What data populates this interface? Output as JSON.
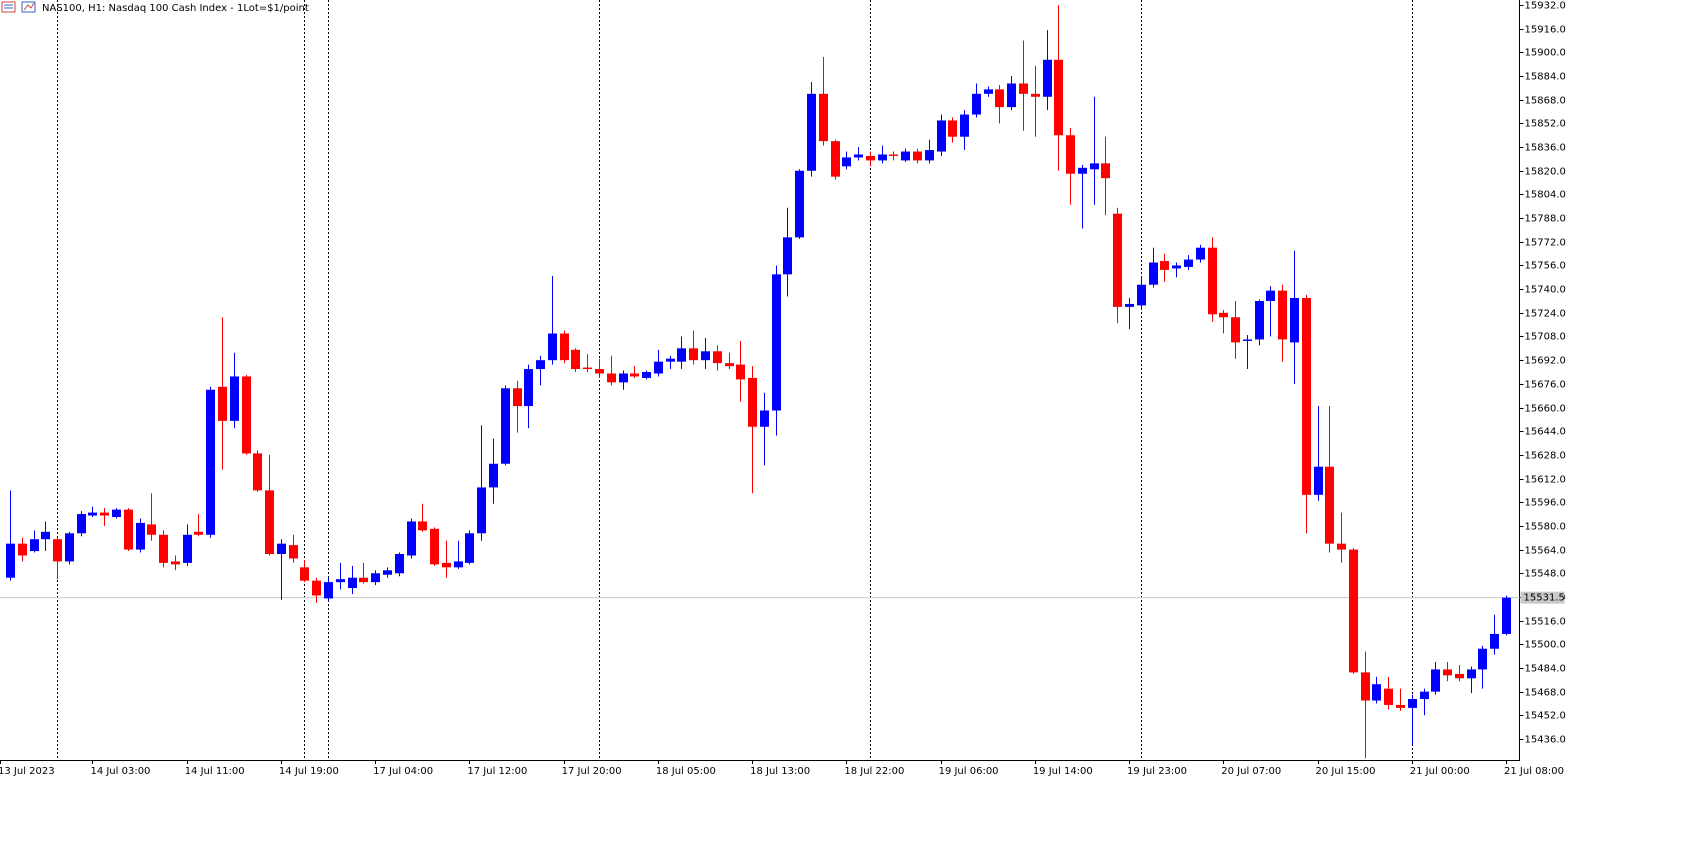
{
  "chart_data": {
    "type": "candlestick",
    "title": "NAS100, H1:  Nasdaq 100 Cash Index - 1Lot=$1/point",
    "up_color": "#0000ff",
    "down_color": "#ff0000",
    "ylim": [
      15421.8,
      15935.4
    ],
    "yticks": [
      {
        "value": 15932,
        "label": "15932.0"
      },
      {
        "value": 15916,
        "label": "15916.0"
      },
      {
        "value": 15900,
        "label": "15900.0"
      },
      {
        "value": 15884,
        "label": "15884.0"
      },
      {
        "value": 15868,
        "label": "15868.0"
      },
      {
        "value": 15852,
        "label": "15852.0"
      },
      {
        "value": 15836,
        "label": "15836.0"
      },
      {
        "value": 15820,
        "label": "15820.0"
      },
      {
        "value": 15804,
        "label": "15804.0"
      },
      {
        "value": 15788,
        "label": "15788.0"
      },
      {
        "value": 15772,
        "label": "15772.0"
      },
      {
        "value": 15756,
        "label": "15756.0"
      },
      {
        "value": 15740,
        "label": "15740.0"
      },
      {
        "value": 15724,
        "label": "15724.0"
      },
      {
        "value": 15708,
        "label": "15708.0"
      },
      {
        "value": 15692,
        "label": "15692.0"
      },
      {
        "value": 15676,
        "label": "15676.0"
      },
      {
        "value": 15660,
        "label": "15660.0"
      },
      {
        "value": 15644,
        "label": "15644.0"
      },
      {
        "value": 15628,
        "label": "15628.0"
      },
      {
        "value": 15612,
        "label": "15612.0"
      },
      {
        "value": 15596,
        "label": "15596.0"
      },
      {
        "value": 15580,
        "label": "15580.0"
      },
      {
        "value": 15564,
        "label": "15564.0"
      },
      {
        "value": 15548,
        "label": "15548.0"
      },
      {
        "value": 15532,
        "label": "15532.0"
      },
      {
        "value": 15516,
        "label": "15516.0"
      },
      {
        "value": 15500,
        "label": "15500.0"
      },
      {
        "value": 15484,
        "label": "15484.0"
      },
      {
        "value": 15468,
        "label": "15468.0"
      },
      {
        "value": 15452,
        "label": "15452.0"
      },
      {
        "value": 15436,
        "label": "15436.0"
      }
    ],
    "xticks": [
      {
        "value": -1,
        "label": "13 Jul 2023"
      },
      {
        "value": 7,
        "label": "14 Jul 03:00"
      },
      {
        "value": 15,
        "label": "14 Jul 11:00"
      },
      {
        "value": 23,
        "label": "14 Jul 19:00"
      },
      {
        "value": 31,
        "label": "17 Jul 04:00"
      },
      {
        "value": 39,
        "label": "17 Jul 12:00"
      },
      {
        "value": 47,
        "label": "17 Jul 20:00"
      },
      {
        "value": 55,
        "label": "18 Jul 05:00"
      },
      {
        "value": 63,
        "label": "18 Jul 13:00"
      },
      {
        "value": 71,
        "label": "18 Jul 22:00"
      },
      {
        "value": 79,
        "label": "19 Jul 06:00"
      },
      {
        "value": 87,
        "label": "19 Jul 14:00"
      },
      {
        "value": 95,
        "label": "19 Jul 23:00"
      },
      {
        "value": 103,
        "label": "20 Jul 07:00"
      },
      {
        "value": 111,
        "label": "20 Jul 15:00"
      },
      {
        "value": 119,
        "label": "21 Jul 00:00"
      },
      {
        "value": 127,
        "label": "21 Jul 08:00"
      }
    ],
    "separators": [
      4,
      25,
      27,
      50,
      73,
      96,
      119
    ],
    "current_price": 15531.5,
    "open": [
      15545,
      15568,
      15563,
      15571,
      15571,
      15556,
      15575,
      15587,
      15589,
      15586,
      15591,
      15564,
      15581,
      15574,
      15556,
      15555,
      15576,
      15574,
      15674,
      15651,
      15681,
      15629,
      15604,
      15561,
      15567,
      15552,
      15543,
      15531,
      15542,
      15538,
      15545,
      15542,
      15547,
      15548,
      15560,
      15583,
      15578,
      15555,
      15552,
      15555,
      15575,
      15606,
      15622,
      15673,
      15661,
      15686,
      15692,
      15710,
      15699,
      15687,
      15686,
      15683,
      15677,
      15683,
      15680,
      15683,
      15691,
      15691,
      15700,
      15692,
      15698,
      15690,
      15689,
      15680,
      15647,
      15658,
      15750,
      15775,
      15820,
      15872,
      15840,
      15823,
      15829,
      15830,
      15827,
      15831,
      15827,
      15833,
      15827,
      15833,
      15854,
      15843,
      15858,
      15872,
      15875,
      15863,
      15879,
      15872,
      15870,
      15895,
      15844,
      15818,
      15821,
      15825,
      15791,
      15728,
      15729,
      15743,
      15759,
      15754,
      15755,
      15760,
      15768,
      15724,
      15721,
      15705,
      15706,
      15732,
      15739,
      15704,
      15734,
      15601,
      15620,
      15568,
      15564,
      15481,
      15462,
      15470,
      15459,
      15457,
      15463,
      15468,
      15483,
      15480,
      15477,
      15483,
      15497,
      15507
    ],
    "high": [
      15604,
      15572,
      15577,
      15583,
      15572,
      15576,
      15590,
      15593,
      15592,
      15592,
      15592,
      15585,
      15602,
      15577,
      15560,
      15581,
      15588,
      15674,
      15721,
      15697,
      15682,
      15631,
      15628,
      15571,
      15574,
      15557,
      15545,
      15545,
      15555,
      15553,
      15555,
      15550,
      15552,
      15562,
      15585,
      15595,
      15579,
      15570,
      15570,
      15577,
      15648,
      15639,
      15675,
      15678,
      15689,
      15695,
      15749,
      15712,
      15700,
      15696,
      15693,
      15695,
      15685,
      15688,
      15685,
      15699,
      15695,
      15708,
      15712,
      15707,
      15702,
      15697,
      15705,
      15688,
      15670,
      15756,
      15795,
      15821,
      15880,
      15897,
      15841,
      15833,
      15836,
      15833,
      15837,
      15833,
      15835,
      15835,
      15841,
      15858,
      15856,
      15861,
      15879,
      15877,
      15878,
      15884,
      15908,
      15891,
      15915,
      15932,
      15849,
      15824,
      15870,
      15843,
      15795,
      15734,
      15749,
      15768,
      15764,
      15758,
      15763,
      15770,
      15775,
      15726,
      15732,
      15709,
      15733,
      15742,
      15743,
      15766,
      15736,
      15661,
      15661,
      15589,
      15565,
      15495,
      15478,
      15478,
      15470,
      15466,
      15470,
      15488,
      15488,
      15486,
      15485,
      15499,
      15520,
      15533
    ],
    "low": [
      15543,
      15556,
      15562,
      15563,
      15544,
      15554,
      15573,
      15586,
      15580,
      15585,
      15563,
      15562,
      15570,
      15552,
      15550,
      15553,
      15573,
      15572,
      15618,
      15646,
      15628,
      15603,
      15560,
      15530,
      15555,
      15542,
      15528,
      15529,
      15537,
      15534,
      15541,
      15540,
      15545,
      15546,
      15558,
      15576,
      15553,
      15545,
      15551,
      15554,
      15570,
      15595,
      15621,
      15643,
      15646,
      15675,
      15689,
      15690,
      15684,
      15684,
      15680,
      15675,
      15672,
      15680,
      15679,
      15681,
      15686,
      15686,
      15689,
      15686,
      15685,
      15686,
      15664,
      15602,
      15621,
      15641,
      15735,
      15774,
      15816,
      15837,
      15814,
      15821,
      15827,
      15823,
      15825,
      15827,
      15826,
      15825,
      15825,
      15830,
      15839,
      15834,
      15856,
      15870,
      15852,
      15861,
      15847,
      15843,
      15861,
      15820,
      15797,
      15781,
      15797,
      15790,
      15717,
      15713,
      15726,
      15741,
      15745,
      15748,
      15753,
      15758,
      15718,
      15710,
      15693,
      15686,
      15702,
      15708,
      15691,
      15676,
      15575,
      15597,
      15562,
      15555,
      15480,
      15423,
      15460,
      15456,
      15455,
      15432,
      15452,
      15466,
      15475,
      15475,
      15467,
      15470,
      15493,
      15506
    ],
    "close": [
      15568,
      15560,
      15571,
      15576,
      15556,
      15575,
      15588,
      15589,
      15587,
      15591,
      15564,
      15582,
      15574,
      15555,
      15554,
      15574,
      15574,
      15672,
      15651,
      15681,
      15629,
      15604,
      15561,
      15568,
      15558,
      15543,
      15533,
      15542,
      15544,
      15545,
      15542,
      15548,
      15550,
      15561,
      15583,
      15577,
      15554,
      15552,
      15556,
      15575,
      15606,
      15622,
      15673,
      15661,
      15686,
      15692,
      15710,
      15692,
      15686,
      15686,
      15683,
      15677,
      15683,
      15681,
      15684,
      15691,
      15693,
      15700,
      15692,
      15698,
      15690,
      15688,
      15679,
      15647,
      15658,
      15750,
      15775,
      15820,
      15872,
      15840,
      15816,
      15829,
      15831,
      15827,
      15831,
      15830,
      15833,
      15827,
      15834,
      15854,
      15843,
      15858,
      15872,
      15875,
      15863,
      15879,
      15872,
      15870,
      15895,
      15844,
      15818,
      15822,
      15825,
      15815,
      15728,
      15730,
      15743,
      15758,
      15753,
      15756,
      15760,
      15768,
      15723,
      15721,
      15704,
      15706,
      15732,
      15739,
      15706,
      15734,
      15601,
      15620,
      15568,
      15564,
      15481,
      15462,
      15473,
      15459,
      15457,
      15463,
      15468,
      15483,
      15479,
      15477,
      15483,
      15497,
      15507,
      15531.5
    ]
  }
}
